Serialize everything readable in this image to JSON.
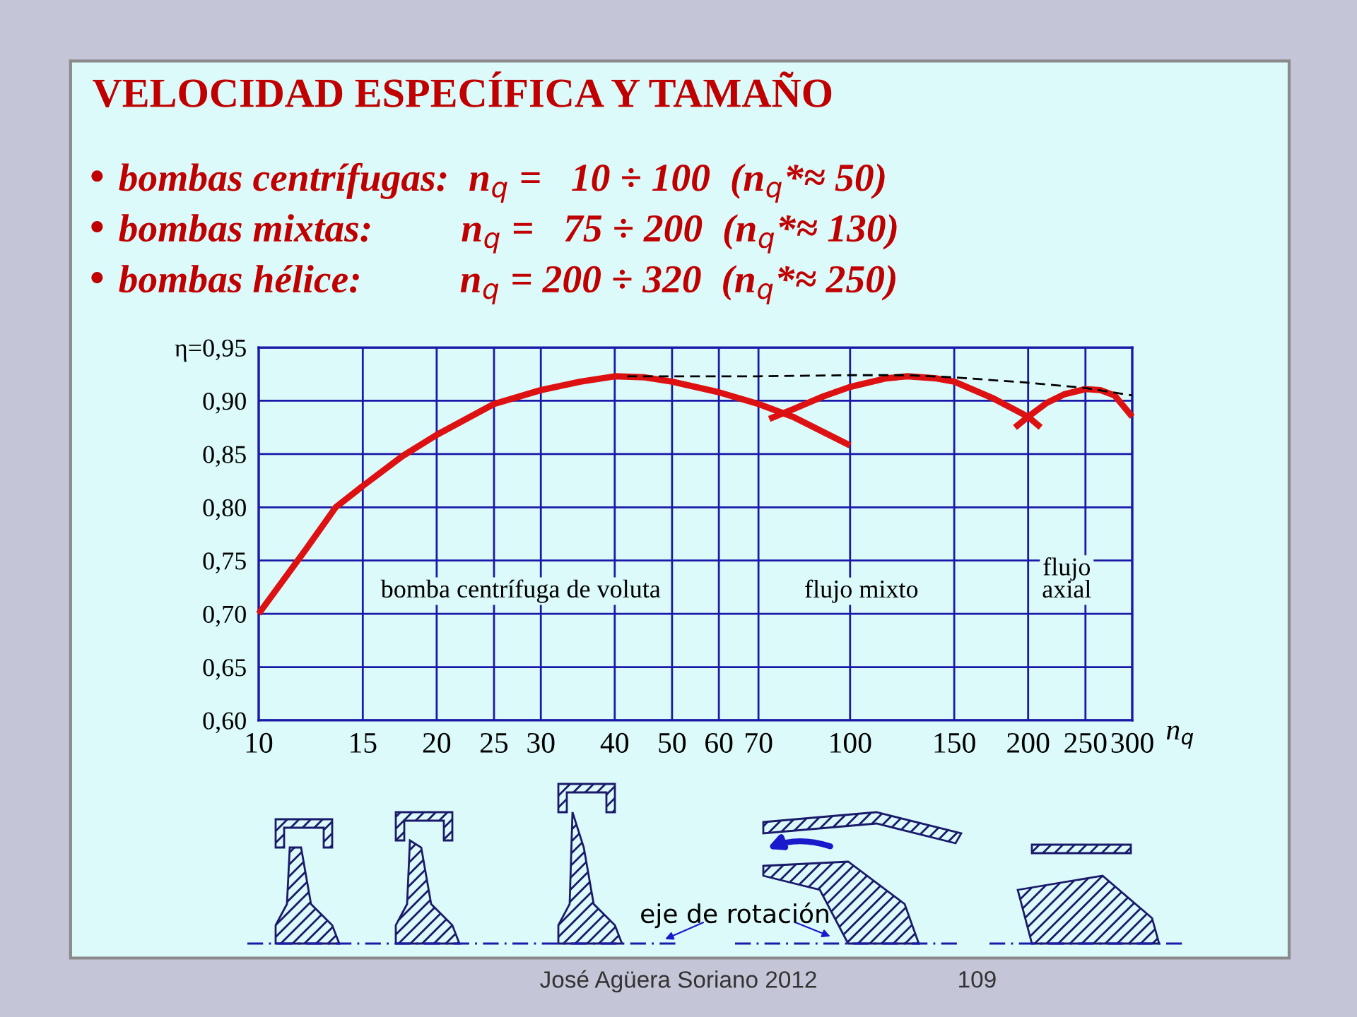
{
  "chart_data": {
    "type": "line",
    "title": "VELOCIDAD ESPECÍFICA Y TAMAÑO",
    "xlabel": "n$_{q}$",
    "log": "x",
    "xlim": [
      10,
      300
    ],
    "xticks": [
      10,
      15,
      20,
      25,
      30,
      40,
      50,
      60,
      70,
      100,
      150,
      200,
      250,
      300
    ],
    "ylim": [
      0.6,
      0.95
    ],
    "yticks": [
      {
        "value": 0.6,
        "label": "0,60"
      },
      {
        "value": 0.65,
        "label": "0,65"
      },
      {
        "value": 0.7,
        "label": "0,70"
      },
      {
        "value": 0.75,
        "label": "0,75"
      },
      {
        "value": 0.8,
        "label": "0,80"
      },
      {
        "value": 0.85,
        "label": "0,85"
      },
      {
        "value": 0.9,
        "label": "0,90"
      },
      {
        "value": 0.95,
        "label": "η=0,95"
      }
    ],
    "grid": true,
    "legend": false,
    "series": [
      {
        "color": "#dd1111",
        "line_style": "solid",
        "x": [
          10,
          12,
          13.5,
          15,
          17.5,
          20,
          25,
          30,
          35,
          40,
          45,
          50,
          60,
          70,
          80,
          100
        ],
        "values": [
          0.7,
          0.76,
          0.8,
          0.82,
          0.848,
          0.868,
          0.897,
          0.91,
          0.918,
          0.923,
          0.922,
          0.918,
          0.908,
          0.897,
          0.885,
          0.858
        ]
      },
      {
        "color": "#dd1111",
        "line_style": "solid",
        "x": [
          73,
          80,
          90,
          100,
          115,
          125,
          140,
          150,
          175,
          200,
          210
        ],
        "values": [
          0.883,
          0.892,
          0.904,
          0.913,
          0.921,
          0.923,
          0.921,
          0.918,
          0.902,
          0.885,
          0.875
        ]
      },
      {
        "color": "#dd1111",
        "line_style": "solid",
        "x": [
          190,
          200,
          215,
          230,
          250,
          265,
          280,
          300
        ],
        "values": [
          0.875,
          0.885,
          0.898,
          0.906,
          0.911,
          0.91,
          0.905,
          0.885
        ]
      },
      {
        "color": "#000000",
        "line_style": "dashed",
        "x": [
          42,
          70,
          100,
          125,
          150,
          200,
          250,
          300
        ],
        "values": [
          0.923,
          0.923,
          0.924,
          0.924,
          0.922,
          0.917,
          0.912,
          0.905
        ]
      }
    ],
    "annotations": [
      "• bombas centrífugas:  n$_{q}$ =   10 ÷ 100  (n$_{q}$*≈ 50)",
      "• bombas mixtas:         n$_{q}$ =   75 ÷ 200  (n$_{q}$*≈ 130)",
      "• bombas hélice:          n$_{q}$ = 200 ÷ 320  (n$_{q}$*≈ 250)",
      "bomba centrífuga de voluta",
      "flujo mixto",
      "flujo\naxial",
      "eje de rotación",
      "José Agüera Soriano 2012",
      "109"
    ]
  }
}
